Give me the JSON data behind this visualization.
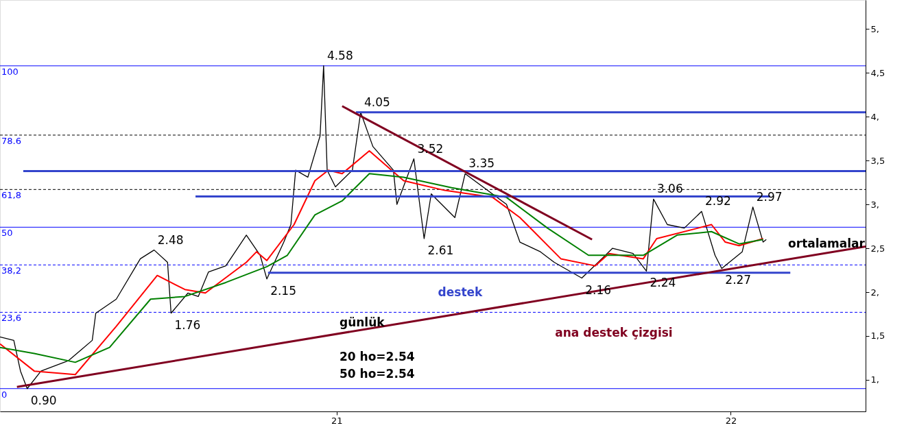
{
  "chart_data": {
    "type": "line",
    "xlim": [
      20.146,
      22.342
    ],
    "ylim": [
      0.64,
      5.33
    ],
    "xticks": [
      {
        "value": 21,
        "label": "21"
      },
      {
        "value": 22,
        "label": "22"
      }
    ],
    "yticks": [
      {
        "value": 1,
        "label": "1,"
      },
      {
        "value": 1.5,
        "label": "1,5"
      },
      {
        "value": 2,
        "label": "2,"
      },
      {
        "value": 2.5,
        "label": "2,5"
      },
      {
        "value": 3,
        "label": "3,"
      },
      {
        "value": 3.5,
        "label": "3,5"
      },
      {
        "value": 4,
        "label": "4,"
      },
      {
        "value": 4.5,
        "label": "4,5"
      },
      {
        "value": 5,
        "label": "5,"
      }
    ],
    "grid": false,
    "line_style": "solid",
    "marker": "none",
    "series": [
      {
        "color": "#000000",
        "x": [
          20.146,
          20.181,
          20.198,
          20.215,
          20.25,
          20.32,
          20.38,
          20.389,
          20.441,
          20.502,
          20.537,
          20.571,
          20.58,
          20.623,
          20.649,
          20.675,
          20.719,
          20.771,
          20.806,
          20.823,
          20.866,
          20.884,
          20.896,
          20.927,
          20.958,
          20.967,
          20.976,
          20.997,
          21.04,
          21.061,
          21.092,
          21.144,
          21.153,
          21.196,
          21.222,
          21.24,
          21.3,
          21.326,
          21.431,
          21.465,
          21.517,
          21.552,
          21.622,
          21.682,
          21.7,
          21.752,
          21.786,
          21.804,
          21.839,
          21.882,
          21.926,
          21.96,
          21.977,
          22.029,
          22.056,
          22.082,
          22.09
        ],
        "values": [
          1.49,
          1.45,
          1.1,
          0.9,
          1.1,
          1.22,
          1.45,
          1.76,
          1.92,
          2.38,
          2.48,
          2.34,
          1.76,
          1.99,
          1.95,
          2.23,
          2.3,
          2.65,
          2.42,
          2.15,
          2.57,
          2.77,
          3.39,
          3.31,
          3.78,
          4.58,
          3.39,
          3.2,
          3.39,
          4.05,
          3.66,
          3.39,
          3.0,
          3.52,
          2.61,
          3.12,
          2.85,
          3.35,
          3.0,
          2.57,
          2.46,
          2.34,
          2.16,
          2.42,
          2.5,
          2.44,
          2.24,
          3.06,
          2.77,
          2.73,
          2.92,
          2.42,
          2.27,
          2.46,
          2.97,
          2.57,
          2.6
        ]
      },
      {
        "color": "#ff0000",
        "x": [
          20.146,
          20.233,
          20.337,
          20.441,
          20.545,
          20.615,
          20.667,
          20.771,
          20.797,
          20.823,
          20.892,
          20.945,
          20.979,
          21.014,
          21.083,
          21.17,
          21.274,
          21.396,
          21.465,
          21.569,
          21.656,
          21.691,
          21.778,
          21.812,
          21.917,
          21.951,
          21.986,
          22.021,
          22.082
        ],
        "values": [
          1.41,
          1.1,
          1.06,
          1.61,
          2.19,
          2.03,
          1.99,
          2.34,
          2.46,
          2.36,
          2.77,
          3.27,
          3.39,
          3.35,
          3.61,
          3.27,
          3.16,
          3.08,
          2.85,
          2.38,
          2.3,
          2.44,
          2.38,
          2.61,
          2.73,
          2.77,
          2.57,
          2.53,
          2.61
        ]
      },
      {
        "color": "#008000",
        "x": [
          20.146,
          20.233,
          20.337,
          20.424,
          20.528,
          20.615,
          20.719,
          20.823,
          20.875,
          20.945,
          21.014,
          21.083,
          21.17,
          21.292,
          21.431,
          21.535,
          21.639,
          21.726,
          21.778,
          21.864,
          21.951,
          22.021,
          22.082
        ],
        "values": [
          1.37,
          1.3,
          1.2,
          1.37,
          1.92,
          1.95,
          2.11,
          2.29,
          2.42,
          2.88,
          3.04,
          3.35,
          3.31,
          3.19,
          3.08,
          2.73,
          2.42,
          2.42,
          2.42,
          2.65,
          2.69,
          2.55,
          2.6
        ]
      },
      {
        "color": "#3344cc",
        "x": [
          21.049,
          22.342
        ],
        "values": [
          4.05,
          4.05
        ]
      },
      {
        "color": "#3344cc",
        "x": [
          20.205,
          22.342
        ],
        "values": [
          3.38,
          3.38
        ]
      },
      {
        "color": "#3344cc",
        "x": [
          20.642,
          22.1
        ],
        "values": [
          3.09,
          3.09
        ]
      },
      {
        "color": "#3344cc",
        "x": [
          20.826,
          22.151
        ],
        "values": [
          2.22,
          2.22
        ]
      },
      {
        "color": "#800020",
        "x": [
          21.014,
          21.648
        ],
        "values": [
          4.12,
          2.6
        ]
      },
      {
        "color": "#800020",
        "x": [
          20.189,
          22.342
        ],
        "values": [
          0.92,
          2.52
        ]
      }
    ],
    "ref_lines": [
      {
        "axis": "y",
        "value": 4.58,
        "color": "#0000ff",
        "line_style": "solid"
      },
      {
        "axis": "y",
        "value": 3.79,
        "color": "#000000",
        "line_style": "dashed"
      },
      {
        "axis": "y",
        "value": 3.17,
        "color": "#000000",
        "line_style": "dashed"
      },
      {
        "axis": "y",
        "value": 2.74,
        "color": "#0000ff",
        "line_style": "solid"
      },
      {
        "axis": "y",
        "value": 2.31,
        "color": "#0000ff",
        "line_style": "dashed"
      },
      {
        "axis": "y",
        "value": 1.77,
        "color": "#0000ff",
        "line_style": "dashed"
      },
      {
        "axis": "y",
        "value": 0.9,
        "color": "#0000ff",
        "line_style": "solid"
      }
    ],
    "annotations": [
      {
        "text": "4.58",
        "x": 20.967,
        "y": 4.58
      },
      {
        "text": "4.05",
        "x": 21.061,
        "y": 4.05
      },
      {
        "text": "3.52",
        "x": 21.196,
        "y": 3.52
      },
      {
        "text": "3.35",
        "x": 21.326,
        "y": 3.35
      },
      {
        "text": "2.48",
        "x": 20.537,
        "y": 2.48
      },
      {
        "text": "2.61",
        "x": 21.222,
        "y": 2.61
      },
      {
        "text": "2.15",
        "x": 20.823,
        "y": 2.15
      },
      {
        "text": "1.76",
        "x": 20.58,
        "y": 1.76
      },
      {
        "text": "0.90",
        "x": 20.215,
        "y": 0.9
      },
      {
        "text": "3.06",
        "x": 21.804,
        "y": 3.06
      },
      {
        "text": "2.92",
        "x": 21.926,
        "y": 2.92
      },
      {
        "text": "2.97",
        "x": 22.056,
        "y": 2.97
      },
      {
        "text": "2.16",
        "x": 21.622,
        "y": 2.16
      },
      {
        "text": "2.24",
        "x": 21.786,
        "y": 2.24
      },
      {
        "text": "2.27",
        "x": 21.977,
        "y": 2.27
      },
      {
        "text": "100",
        "x": 20.146,
        "y": 4.58
      },
      {
        "text": "78.6",
        "x": 20.146,
        "y": 3.79
      },
      {
        "text": "61,8",
        "x": 20.146,
        "y": 3.17
      },
      {
        "text": "50",
        "x": 20.146,
        "y": 2.74
      },
      {
        "text": "38,2",
        "x": 20.146,
        "y": 2.31
      },
      {
        "text": "23,6",
        "x": 20.146,
        "y": 1.77
      },
      {
        "text": "0",
        "x": 20.146,
        "y": 0.9
      },
      "destek",
      "ana destek çizgisi",
      "ortalamalar",
      "günlük",
      "20 ho=2.54",
      "50 ho=2.54"
    ]
  }
}
